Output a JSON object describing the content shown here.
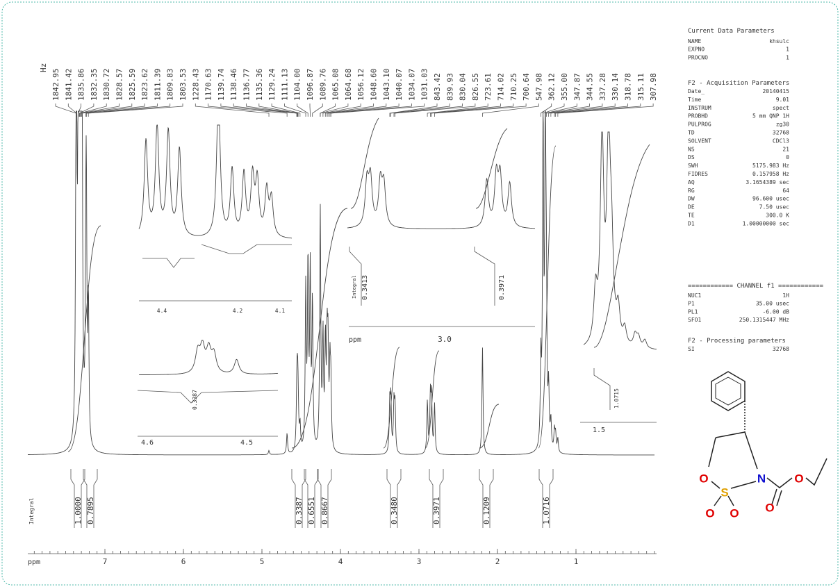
{
  "peak_labels": {
    "unit": "Hz",
    "values": [
      "1842.95",
      "1841.42",
      "1835.86",
      "1832.35",
      "1830.72",
      "1828.57",
      "1825.59",
      "1823.62",
      "1811.39",
      "1809.83",
      "1803.53",
      "1228.43",
      "1170.63",
      "1139.74",
      "1138.46",
      "1136.77",
      "1135.36",
      "1129.24",
      "1111.13",
      "1104.00",
      "1096.87",
      "1089.76",
      "1065.08",
      "1064.68",
      "1056.12",
      "1048.60",
      "1043.10",
      "1040.07",
      "1034.07",
      "1031.03",
      "843.42",
      "839.93",
      "830.04",
      "826.55",
      "723.61",
      "714.02",
      "710.25",
      "700.64",
      "547.98",
      "362.12",
      "355.00",
      "347.87",
      "344.55",
      "337.28",
      "330.14",
      "318.78",
      "315.11",
      "307.98"
    ]
  },
  "parameters": {
    "current": {
      "title": "Current Data Parameters",
      "rows": [
        [
          "NAME",
          "khsulc"
        ],
        [
          "EXPNO",
          "1"
        ],
        [
          "PROCNO",
          "1"
        ]
      ]
    },
    "acquisition": {
      "title": "F2 - Acquisition Parameters",
      "rows": [
        [
          "Date_",
          "20140415"
        ],
        [
          "Time",
          "9.01"
        ],
        [
          "INSTRUM",
          "spect"
        ],
        [
          "PROBHD",
          "5 mm QNP 1H"
        ],
        [
          "PULPROG",
          "zg30"
        ],
        [
          "TD",
          "32768"
        ],
        [
          "SOLVENT",
          "CDCl3"
        ],
        [
          "NS",
          "21"
        ],
        [
          "DS",
          "0"
        ],
        [
          "SWH",
          "5175.983 Hz"
        ],
        [
          "FIDRES",
          "0.157958 Hz"
        ],
        [
          "AQ",
          "3.1654389 sec"
        ],
        [
          "RG",
          "64"
        ],
        [
          "DW",
          "96.600 usec"
        ],
        [
          "DE",
          "7.50 usec"
        ],
        [
          "TE",
          "300.0 K"
        ],
        [
          "D1",
          "1.00000000 sec"
        ]
      ]
    },
    "channel": {
      "title": "============ CHANNEL f1 ============",
      "rows": [
        [
          "NUC1",
          "1H"
        ],
        [
          "P1",
          "35.00 usec"
        ],
        [
          "PL1",
          "-6.00 dB"
        ],
        [
          "SFO1",
          "250.1315447 MHz"
        ]
      ]
    },
    "processing": {
      "title": "F2 - Processing parameters",
      "rows": [
        [
          "SI",
          "32768"
        ]
      ]
    }
  },
  "axis": {
    "label": "ppm",
    "ticks": [
      "7",
      "6",
      "5",
      "4",
      "3",
      "2",
      "1"
    ]
  },
  "integrals": {
    "label": "Integral",
    "values": [
      "1.0000",
      "0.7895",
      "0.3387",
      "0.6551",
      "0.8667",
      "0.3480",
      "0.3971",
      "0.1209",
      "1.0716"
    ]
  },
  "insets": {
    "a": {
      "ticks": [
        "4.4",
        "4.2",
        "4.1"
      ]
    },
    "c": {
      "ticks": [
        "4.6",
        "4.5"
      ],
      "integral": "0.3387"
    },
    "d": {
      "label": "Integral",
      "integrals": [
        "0.3413",
        "0.3971"
      ],
      "axis_label": "ppm",
      "tick": "3.0"
    },
    "e": {
      "integral": "1.0715",
      "tick": "1.5"
    }
  },
  "structure": {
    "atoms": [
      "O",
      "S",
      "N",
      "O",
      "O",
      "O",
      "O"
    ]
  }
}
